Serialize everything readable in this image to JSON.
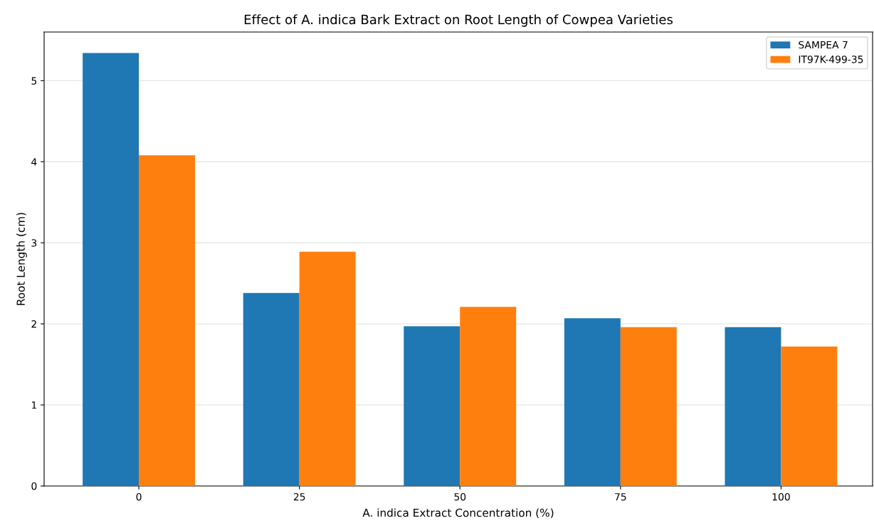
{
  "chart_data": {
    "type": "bar",
    "title": "Effect of A. indica Bark Extract on Root Length of Cowpea Varieties",
    "xlabel": "A. indica Extract Concentration (%)",
    "ylabel": "Root Length (cm)",
    "categories": [
      "0",
      "25",
      "50",
      "75",
      "100"
    ],
    "series": [
      {
        "name": "SAMPEA 7",
        "color": "#1f77b4",
        "values": [
          5.34,
          2.38,
          1.97,
          2.07,
          1.96
        ]
      },
      {
        "name": "IT97K-499-35",
        "color": "#ff7f0e",
        "values": [
          4.08,
          2.89,
          2.21,
          1.96,
          1.72
        ]
      }
    ],
    "ylim": [
      0,
      5.6
    ],
    "yticks": [
      0,
      1,
      2,
      3,
      4,
      5
    ],
    "grid": "y",
    "legend": "top right"
  }
}
